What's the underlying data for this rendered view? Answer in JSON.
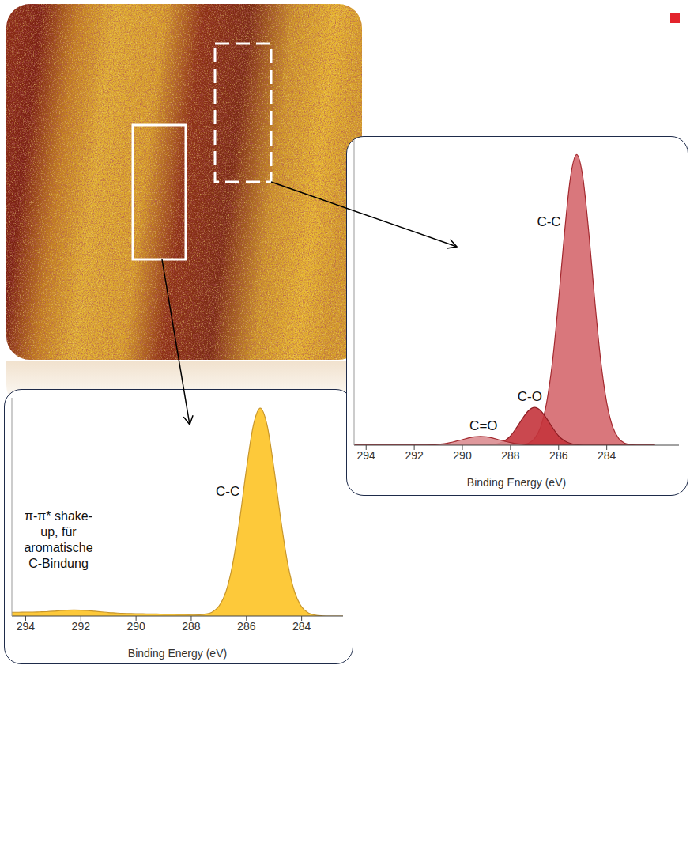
{
  "chart_data": [
    {
      "type": "area",
      "xlabel": "Binding Energy (eV)",
      "x": [
        282,
        282.25,
        282.5,
        282.75,
        283,
        283.25,
        283.5,
        283.75,
        284,
        284.25,
        284.5,
        284.75,
        285,
        285.25,
        285.5,
        285.75,
        286,
        286.25,
        286.5,
        286.75,
        287,
        287.25,
        287.5,
        287.75,
        288,
        288.25,
        288.5,
        288.75,
        289,
        289.25,
        289.5,
        289.75,
        290,
        290.25,
        290.5,
        290.75,
        291,
        291.25,
        291.5,
        291.75,
        292,
        292.25,
        292.5,
        292.75,
        293,
        293.25,
        293.5,
        293.75,
        294,
        294.25,
        294.5
      ],
      "series": [
        {
          "name": "C-C",
          "color": "#d9777c",
          "values": [
            0,
            0,
            0,
            0,
            0.2,
            0.7,
            2.3,
            6.2,
            14.6,
            29.1,
            50,
            73.5,
            92.6,
            100,
            92.6,
            73.5,
            50,
            29.1,
            14.6,
            6.2,
            2.3,
            0.7,
            0.2,
            0,
            0,
            0,
            0,
            0,
            0,
            0,
            0,
            0,
            0,
            0,
            0,
            0,
            0,
            0,
            0,
            0,
            0,
            0,
            0,
            0,
            0,
            0,
            0,
            0,
            0,
            0,
            0
          ]
        },
        {
          "name": "C-O",
          "color": "#c4343c",
          "values": [
            0,
            0,
            0,
            0,
            0,
            0,
            0,
            0,
            0,
            0,
            0,
            0,
            0,
            0.2,
            0.6,
            1.5,
            3.2,
            6.0,
            9.2,
            11.9,
            13,
            11.9,
            9.2,
            6.0,
            3.2,
            1.5,
            0.6,
            0.2,
            0,
            0,
            0,
            0,
            0,
            0,
            0,
            0,
            0,
            0,
            0,
            0,
            0,
            0,
            0,
            0,
            0,
            0,
            0,
            0,
            0,
            0,
            0
          ]
        },
        {
          "name": "C=O",
          "color": "#dc8d91",
          "values": [
            0,
            0,
            0,
            0,
            0,
            0,
            0,
            0,
            0,
            0,
            0,
            0,
            0,
            0,
            0,
            0,
            0,
            0,
            0,
            0,
            0,
            0.1,
            0.3,
            0.5,
            0.9,
            1.4,
            1.9,
            2.5,
            2.9,
            3,
            2.9,
            2.5,
            1.9,
            1.4,
            0.9,
            0.5,
            0.3,
            0.1,
            0,
            0,
            0,
            0,
            0,
            0,
            0,
            0,
            0,
            0,
            0,
            0,
            0
          ]
        }
      ],
      "xlim": [
        294.5,
        281
      ],
      "xticks": [
        294,
        292,
        290,
        288,
        286,
        284
      ],
      "ylim": [
        0,
        105
      ],
      "yticks": [],
      "tick_labels": "x"
    },
    {
      "type": "area",
      "xlabel": "Binding Energy (eV)",
      "annotation": "π-π* shake-up, für aromatische C-Bindung",
      "x": [
        282,
        282.25,
        282.5,
        282.75,
        283,
        283.25,
        283.5,
        283.75,
        284,
        284.25,
        284.5,
        284.75,
        285,
        285.25,
        285.5,
        285.75,
        286,
        286.25,
        286.5,
        286.75,
        287,
        287.25,
        287.5,
        287.75,
        288,
        288.25,
        288.5,
        288.75,
        289,
        289.25,
        289.5,
        289.75,
        290,
        290.25,
        290.5,
        290.75,
        291,
        291.25,
        291.5,
        291.75,
        292,
        292.25,
        292.5,
        292.75,
        293,
        293.25,
        293.5,
        293.75,
        294,
        294.25,
        294.5
      ],
      "series": [
        {
          "name": "C-C",
          "color": "#fdc93a",
          "values": [
            0,
            0,
            0,
            0,
            0,
            0.1,
            0.4,
            1.4,
            4.4,
            11.4,
            24.9,
            45.8,
            70.7,
            91.7,
            100,
            91.7,
            70.7,
            45.8,
            24.9,
            11.4,
            4.7,
            1.8,
            0.9,
            0.6,
            0.7,
            0.8,
            0.8,
            0.9,
            0.9,
            1.0,
            1.0,
            1.1,
            1.1,
            1.2,
            1.3,
            1.5,
            1.7,
            2.0,
            2.3,
            2.6,
            2.8,
            2.9,
            2.8,
            2.6,
            2.3,
            2.1,
            2.0,
            1.9,
            1.9,
            1.8,
            1.8
          ]
        }
      ],
      "xlim": [
        294.5,
        282.5
      ],
      "xticks": [
        294,
        292,
        290,
        288,
        286,
        284
      ],
      "ylim": [
        0,
        105
      ],
      "yticks": [],
      "tick_labels": "x"
    }
  ]
}
